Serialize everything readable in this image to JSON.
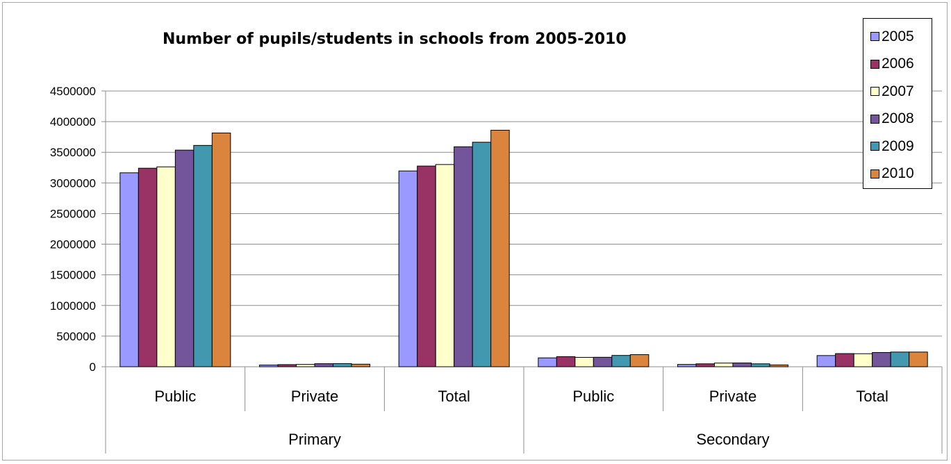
{
  "chart_data": {
    "type": "bar",
    "title": "Number of pupils/students in schools from 2005-2010",
    "xlabel": "",
    "ylabel": "",
    "ylim": [
      0,
      4500000
    ],
    "yticks": [
      0,
      500000,
      1000000,
      1500000,
      2000000,
      2500000,
      3000000,
      3500000,
      4000000,
      4500000
    ],
    "grid": true,
    "legend_position": "top-right",
    "groups": [
      {
        "label": "Primary",
        "categories": [
          "Public",
          "Private",
          "Total"
        ]
      },
      {
        "label": "Secondary",
        "categories": [
          "Public",
          "Private",
          "Total"
        ]
      }
    ],
    "categories": [
      "Public",
      "Private",
      "Total",
      "Public",
      "Private",
      "Total"
    ],
    "series": [
      {
        "name": "2005",
        "color": "#9999ff",
        "values": [
          3165000,
          28000,
          3195000,
          145000,
          38000,
          183000
        ]
      },
      {
        "name": "2006",
        "color": "#993366",
        "values": [
          3240000,
          35000,
          3275000,
          165000,
          48000,
          215000
        ]
      },
      {
        "name": "2007",
        "color": "#ffffcc",
        "values": [
          3262000,
          38000,
          3300000,
          153000,
          60000,
          213000
        ]
      },
      {
        "name": "2008",
        "color": "#72559a",
        "values": [
          3535000,
          50000,
          3590000,
          155000,
          62000,
          233000
        ]
      },
      {
        "name": "2009",
        "color": "#4198af",
        "values": [
          3612000,
          52000,
          3664000,
          185000,
          48000,
          240000
        ]
      },
      {
        "name": "2010",
        "color": "#db843d",
        "values": [
          3815000,
          42000,
          3860000,
          198000,
          30000,
          240000
        ]
      }
    ]
  }
}
